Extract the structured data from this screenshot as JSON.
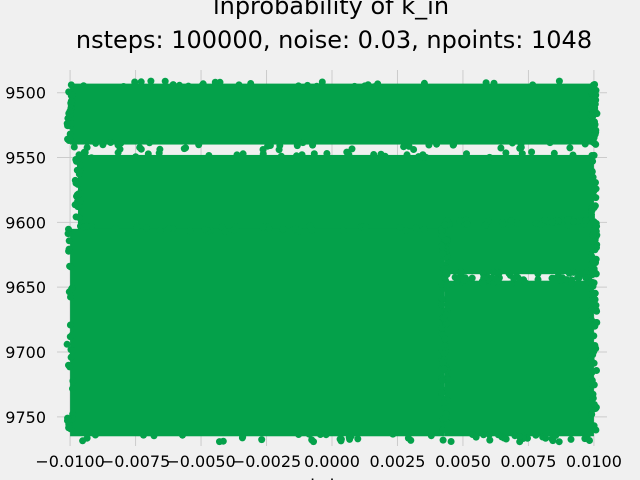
{
  "chart_data": {
    "type": "scatter",
    "title": "lnprobability of k_in",
    "subtitle": "nsteps: 100000, noise: 0.03, npoints: 1048",
    "xlabel": "k_in",
    "ylabel": "",
    "xlim": [
      -0.0105,
      0.0105
    ],
    "ylim": [
      -9772.5,
      -9482.5
    ],
    "x_ticks": [
      -0.01,
      -0.0075,
      -0.005,
      -0.0025,
      0.0,
      0.0025,
      0.005,
      0.0075,
      0.01
    ],
    "x_tick_labels": [
      "−0.0100",
      "−0.0075",
      "−0.0050",
      "−0.0025",
      "0.0000",
      "0.0025",
      "0.0050",
      "0.0075",
      "0.0100"
    ],
    "y_ticks": [
      -9500,
      -9550,
      -9600,
      -9650,
      -9700,
      -9750
    ],
    "y_tick_labels": [
      "9500",
      "9550",
      "9600",
      "9650",
      "9700",
      "9750"
    ],
    "grid": true,
    "marker_color": "#04a14a",
    "background_color": "#f0f0f0",
    "grid_color": "#cbcbcb",
    "series": [
      {
        "description_points": "dense cloud of samples",
        "x_range": [
          -0.01,
          0.01
        ],
        "y_range": [
          -9765,
          -9493
        ],
        "regions": [
          {
            "x": [
              -0.01,
              0.01
            ],
            "y": [
              -9540,
              -9493
            ]
          },
          {
            "x": [
              -0.0097,
              0.01
            ],
            "y": [
              -9620,
              -9548
            ]
          },
          {
            "x": [
              -0.01,
              0.0043
            ],
            "y": [
              -9765,
              -9605
            ]
          },
          {
            "x": [
              0.0043,
              0.01
            ],
            "y": [
              -9640,
              -9600
            ]
          },
          {
            "x": [
              0.0043,
              0.01
            ],
            "y": [
              -9765,
              -9645
            ]
          }
        ]
      }
    ]
  }
}
